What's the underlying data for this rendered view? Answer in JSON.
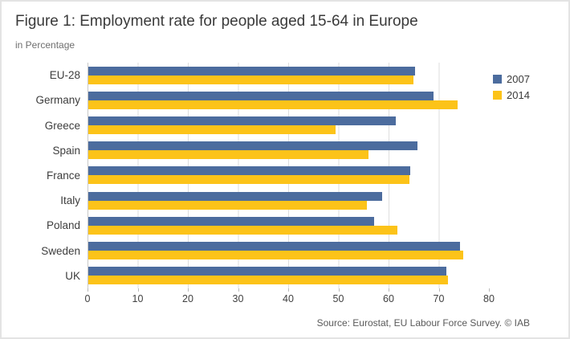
{
  "figure": {
    "title": "Figure 1: Employment rate for people aged 15-64 in Europe",
    "subtitle": "in Percentage",
    "source_note": "Source: Eurostat, EU Labour Force Survey. © IAB"
  },
  "colors": {
    "series_2007": "#4c6c9e",
    "series_2014": "#fcc319",
    "gridline": "#dedede",
    "axis_line": "#c9c9c9",
    "frame_border": "#e3e3e3"
  },
  "chart_data": {
    "type": "bar",
    "orientation": "horizontal",
    "title": "Figure 1: Employment rate for people aged 15-64 in Europe",
    "ylabel": "",
    "xlabel": "in Percentage",
    "categories": [
      "EU-28",
      "Germany",
      "Greece",
      "Spain",
      "France",
      "Italy",
      "Poland",
      "Sweden",
      "UK"
    ],
    "series": [
      {
        "name": "2007",
        "color": "#4c6c9e",
        "values": [
          65.3,
          69.0,
          61.4,
          65.8,
          64.3,
          58.7,
          57.0,
          74.2,
          71.5
        ]
      },
      {
        "name": "2014",
        "color": "#fcc319",
        "values": [
          64.9,
          73.8,
          49.4,
          56.0,
          64.2,
          55.7,
          61.7,
          74.9,
          71.9
        ]
      }
    ],
    "x_ticks": [
      0,
      10,
      20,
      30,
      40,
      50,
      60,
      70,
      80
    ],
    "xlim": [
      0,
      80
    ],
    "grid": true,
    "legend_position": "right"
  }
}
